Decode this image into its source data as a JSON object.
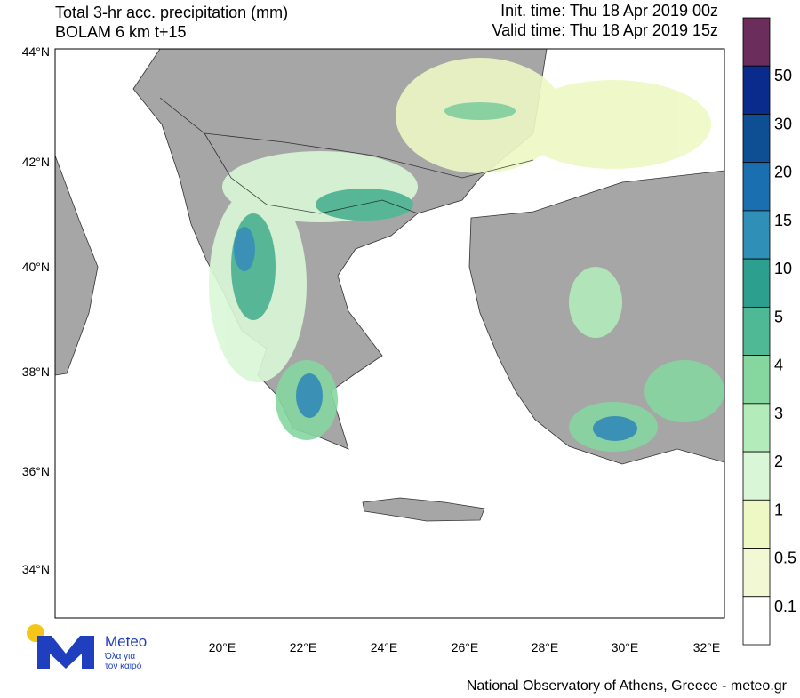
{
  "header": {
    "title": "Total 3-hr acc. precipitation (mm)",
    "subtitle": "BOLAM 6 km t+15",
    "init_time": "Init. time: Thu 18 Apr 2019 00z",
    "valid_time": "Valid time: Thu 18 Apr 2019 15z"
  },
  "map": {
    "lat_labels": [
      "44°N",
      "42°N",
      "40°N",
      "38°N",
      "36°N",
      "34°N"
    ],
    "lon_labels": [
      "20°E",
      "22°E",
      "24°E",
      "26°E",
      "28°E",
      "30°E",
      "32°E"
    ]
  },
  "colorbar": {
    "levels": [
      50,
      30,
      20,
      15,
      10,
      5,
      4,
      3,
      2,
      1,
      0.5,
      0.1
    ],
    "colors": [
      "#6b2d5c",
      "#0a2a8c",
      "#0e4f94",
      "#1a6fb0",
      "#2f8fb7",
      "#2c9f8f",
      "#4fb894",
      "#86d6a0",
      "#b4ebbb",
      "#d9f7d6",
      "#eef8c4",
      "#f3f8d4",
      "#ffffff"
    ]
  },
  "logo": {
    "name": "Meteo",
    "tagline1": "Όλα για",
    "tagline2": "τον καιρό"
  },
  "footer": "National Observatory of Athens, Greece - meteo.gr"
}
